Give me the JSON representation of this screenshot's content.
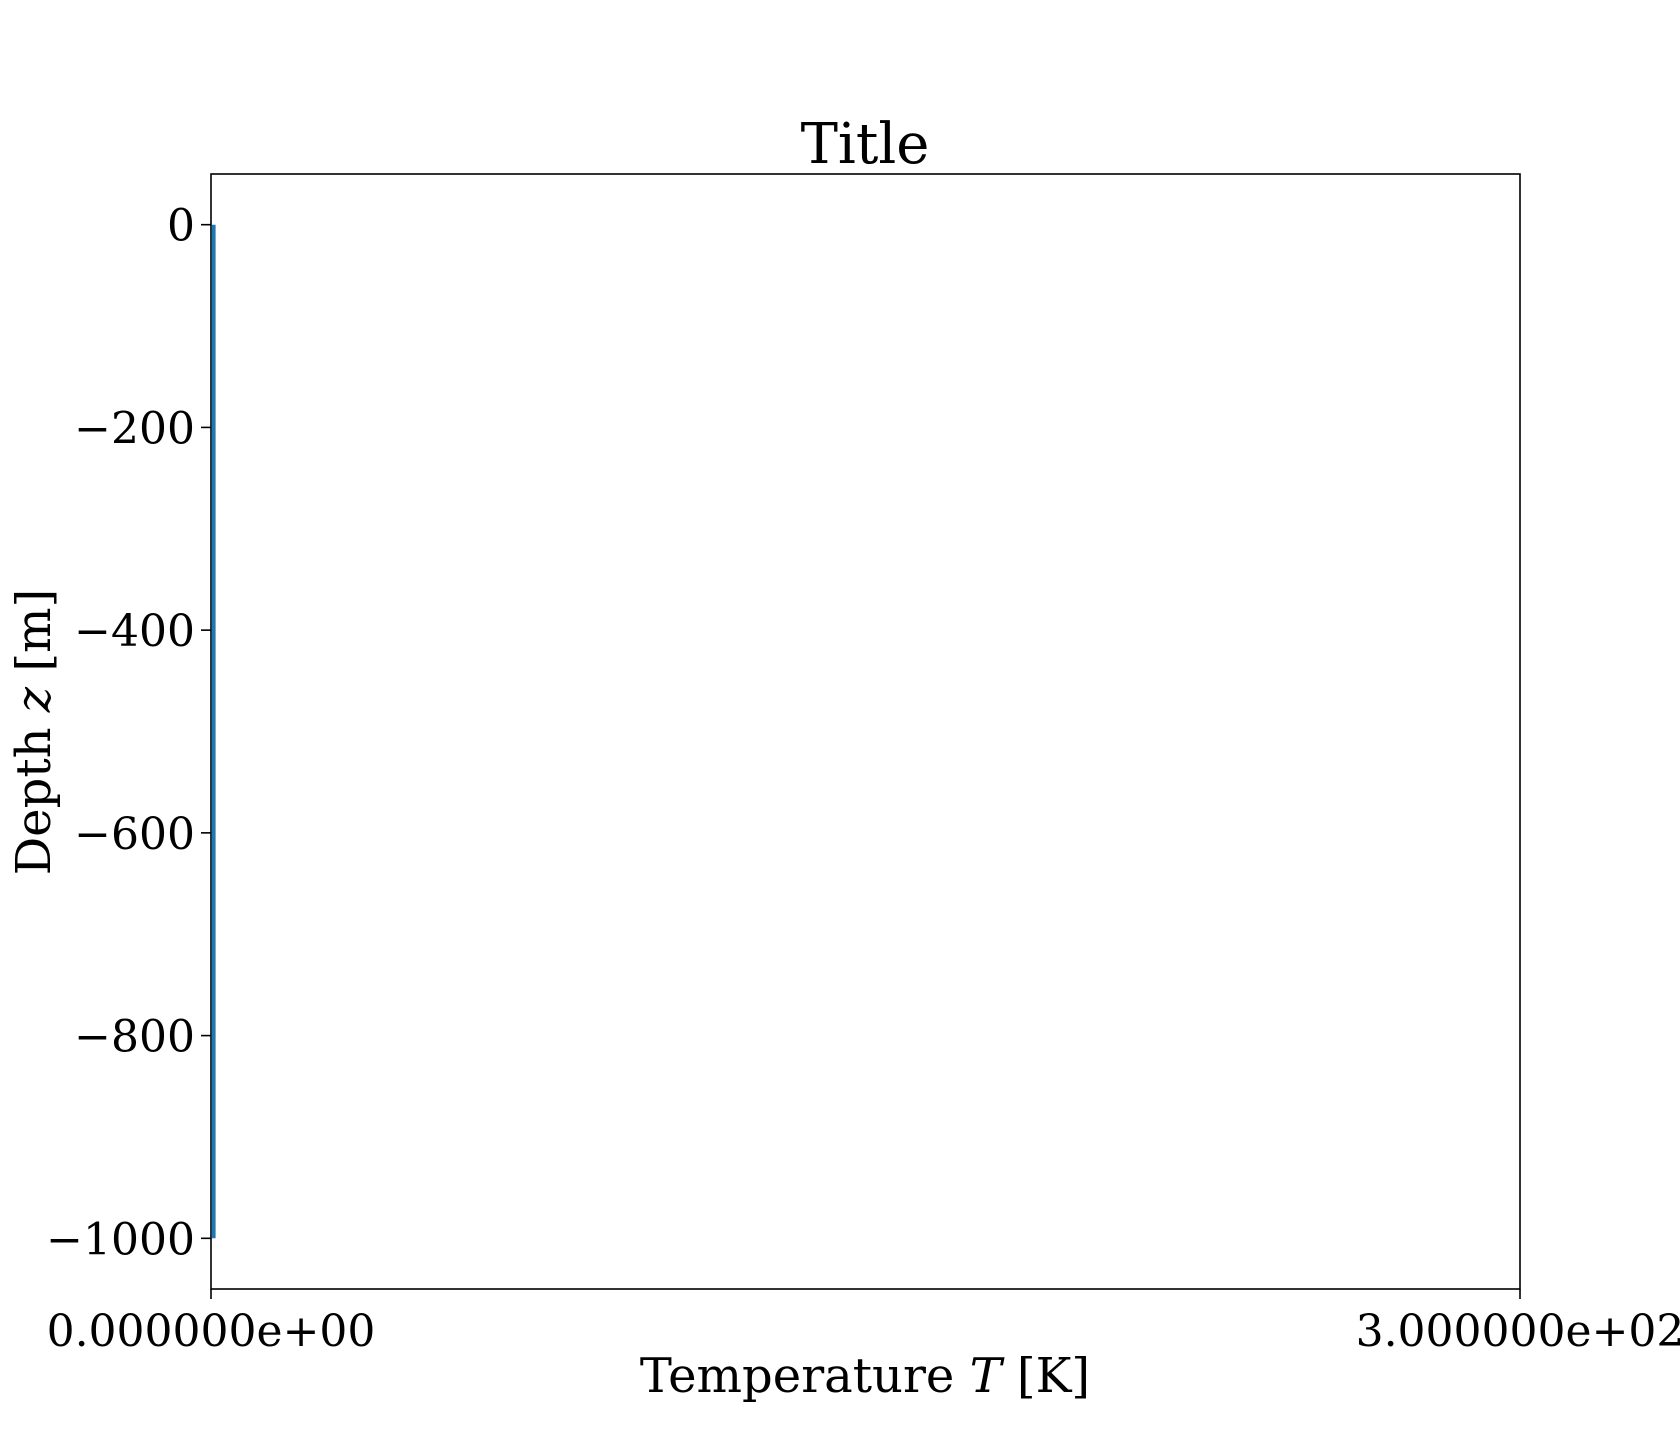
{
  "chart_data": {
    "type": "line",
    "title": "Title",
    "xlabel": "Temperature T [K]",
    "xlabel_parts": {
      "prefix": "Temperature ",
      "symbol": "T",
      "suffix": " [K]"
    },
    "ylabel": "Depth z [m]",
    "ylabel_parts": {
      "prefix": "Depth ",
      "symbol": "z",
      "suffix": " [m]"
    },
    "xlim": [
      0,
      300
    ],
    "ylim": [
      -1050,
      50
    ],
    "xticks": [
      {
        "value": 0,
        "label": "0.000000e+00"
      },
      {
        "value": 300,
        "label": "3.000000e+02"
      }
    ],
    "yticks": [
      {
        "value": 0,
        "label": "0"
      },
      {
        "value": -200,
        "label": "−200"
      },
      {
        "value": -400,
        "label": "−400"
      },
      {
        "value": -600,
        "label": "−600"
      },
      {
        "value": -800,
        "label": "−800"
      },
      {
        "value": -1000,
        "label": "−1000"
      }
    ],
    "grid": false,
    "series": [
      {
        "color": "#1f77b4",
        "x": [
          0.6,
          0.6
        ],
        "y": [
          0,
          -1000
        ]
      }
    ]
  }
}
